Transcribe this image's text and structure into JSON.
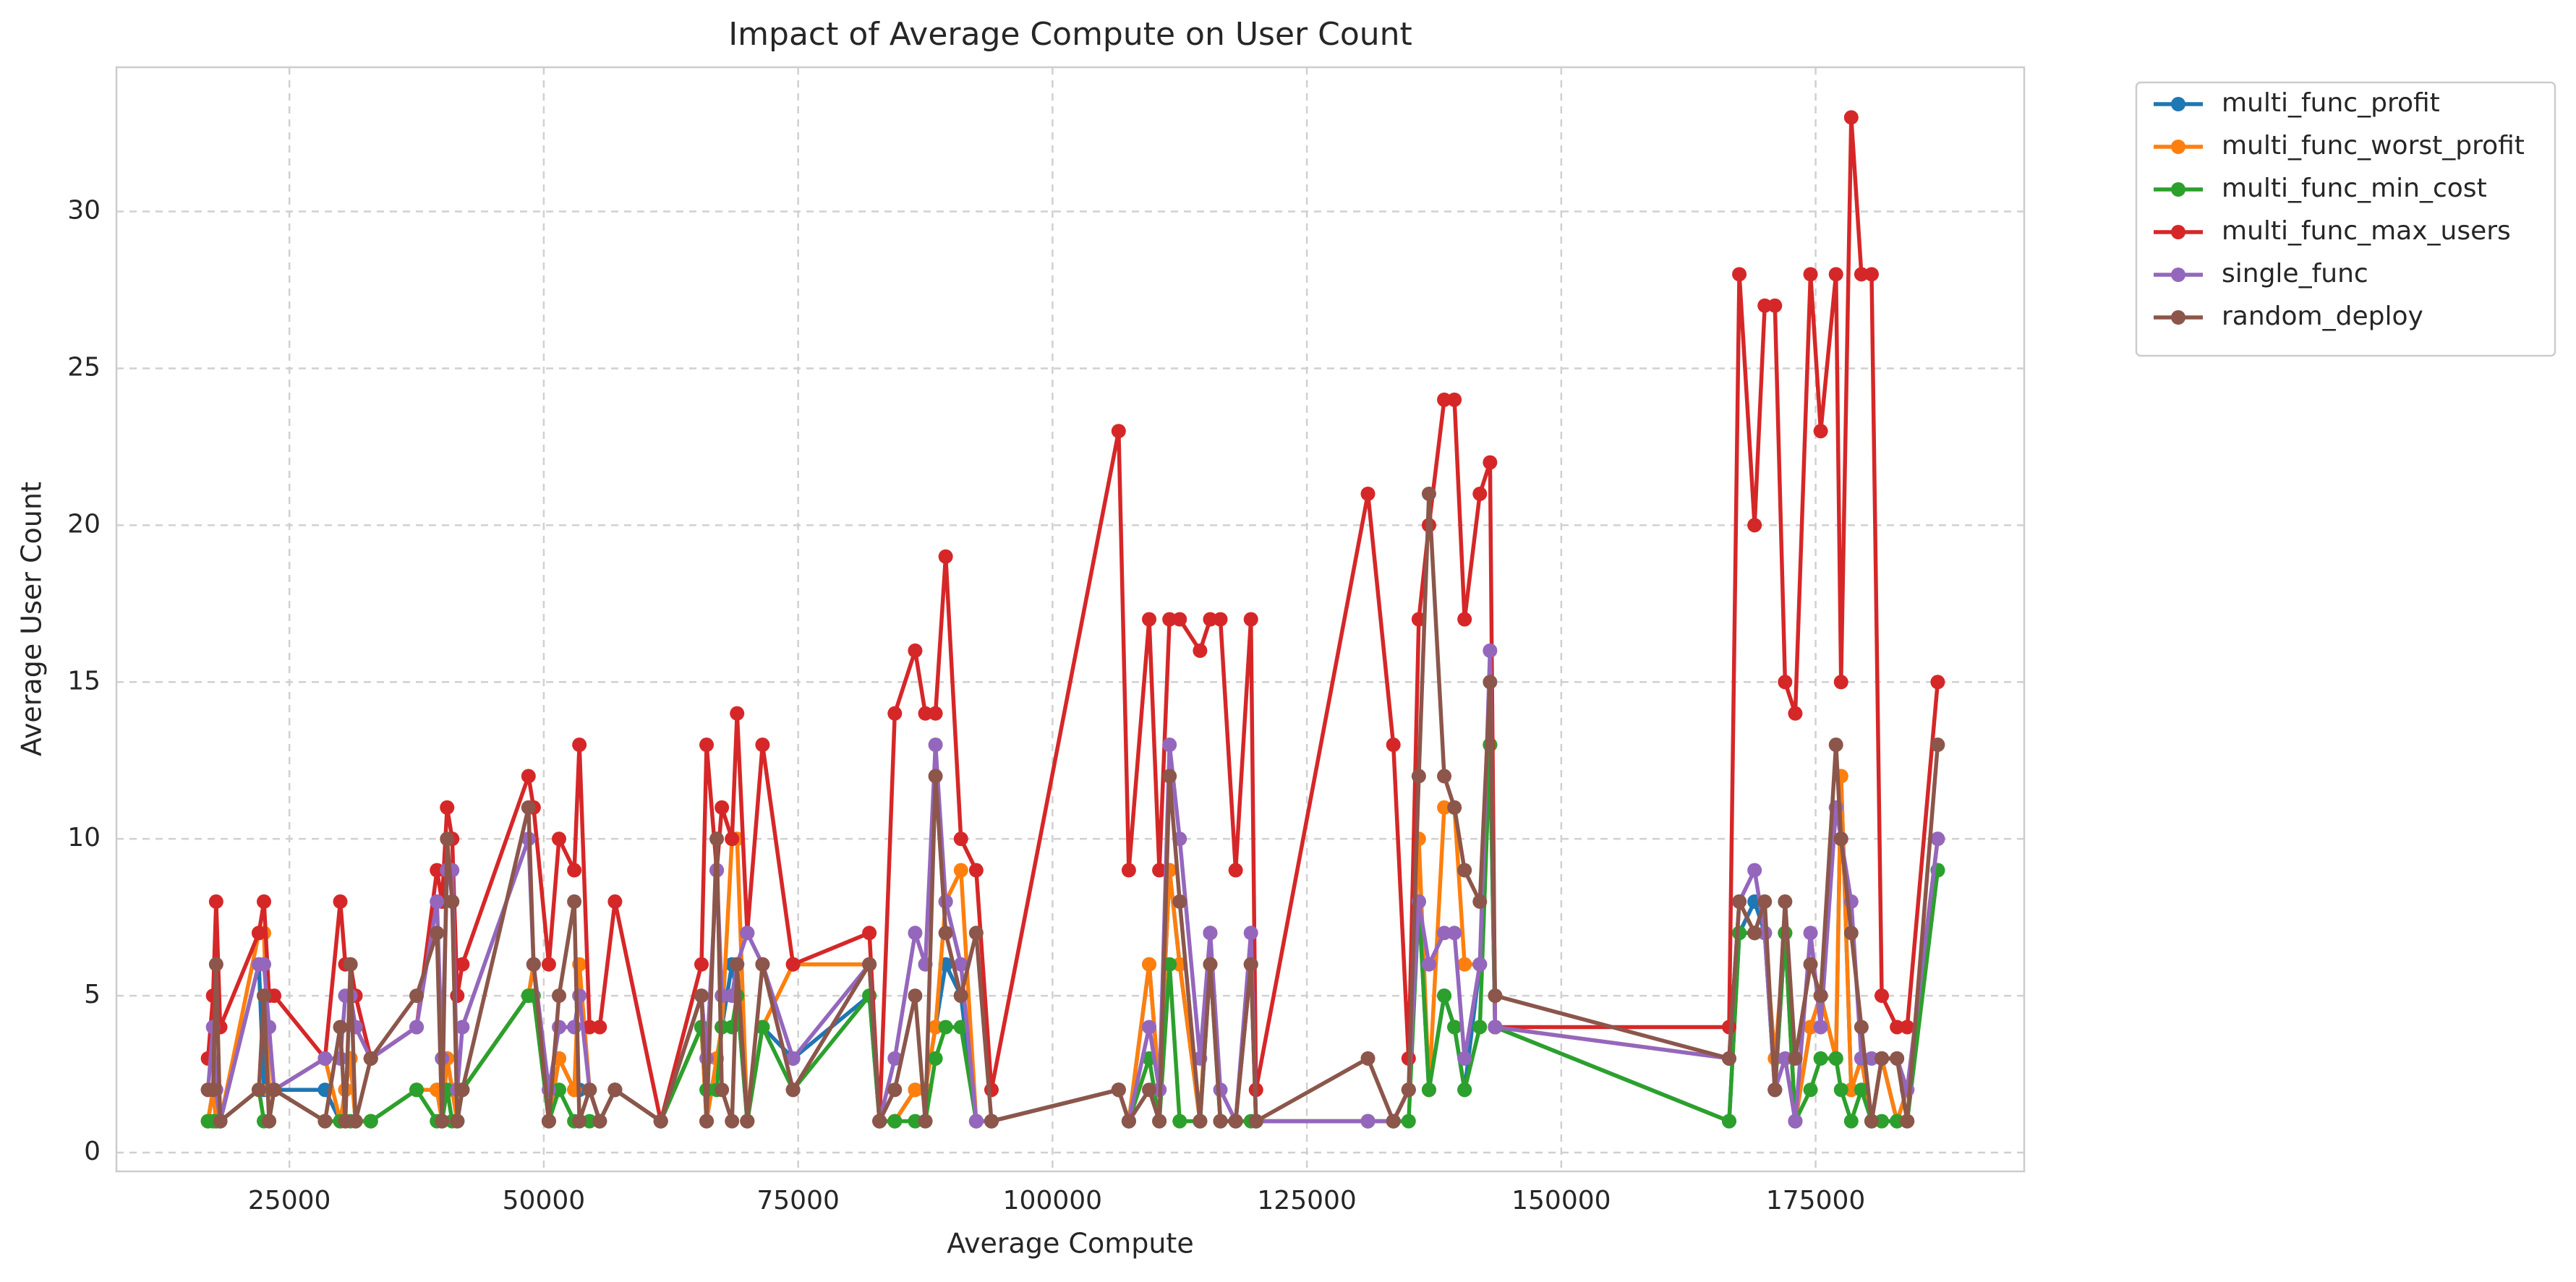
{
  "chart_data": {
    "type": "line",
    "title": "Impact of Average Compute on User Count",
    "x_label": "Average Compute",
    "y_label": "Average User Count",
    "x": [
      17000,
      17500,
      17800,
      18200,
      22000,
      22500,
      23000,
      23500,
      28500,
      30000,
      30500,
      31000,
      31500,
      33000,
      37500,
      39500,
      40000,
      40500,
      41000,
      41500,
      42000,
      48500,
      49000,
      50500,
      51500,
      53000,
      53500,
      54500,
      55500,
      57000,
      61500,
      65500,
      66000,
      67000,
      67500,
      68500,
      69000,
      70000,
      71500,
      74500,
      82000,
      83000,
      84500,
      86500,
      87500,
      88500,
      89500,
      91000,
      92500,
      94000,
      106500,
      107500,
      109500,
      110500,
      111500,
      112500,
      114500,
      115500,
      116500,
      118000,
      119500,
      120000,
      131000,
      133500,
      135000,
      136000,
      137000,
      138500,
      139500,
      140500,
      142000,
      143000,
      143500,
      166500,
      167500,
      169000,
      170000,
      171000,
      172000,
      173000,
      174500,
      175500,
      177000,
      177500,
      178500,
      179500,
      180500,
      181500,
      183000,
      184000,
      187000
    ],
    "series": [
      {
        "name": "multi_func_profit",
        "color": "#1f77b4",
        "values": [
          1,
          2,
          1,
          1,
          6,
          2,
          2,
          2,
          2,
          1,
          2,
          3,
          1,
          1,
          2,
          2,
          1,
          3,
          2,
          1,
          2,
          5,
          6,
          1,
          3,
          2,
          2,
          2,
          1,
          2,
          1,
          4,
          1,
          3,
          4,
          6,
          5,
          1,
          4,
          3,
          5,
          1,
          1,
          2,
          2,
          4,
          6,
          5,
          1,
          1,
          2,
          1,
          6,
          2,
          9,
          6,
          1,
          7,
          1,
          1,
          6,
          1,
          1,
          1,
          2,
          8,
          2,
          5,
          4,
          2,
          6,
          13,
          4,
          1,
          7,
          8,
          7,
          2,
          7,
          1,
          4,
          5,
          3,
          12,
          2,
          3,
          1,
          3,
          1,
          2,
          9
        ]
      },
      {
        "name": "multi_func_worst_profit",
        "color": "#ff7f0e",
        "values": [
          1,
          2,
          1,
          1,
          7,
          7,
          2,
          2,
          3,
          1,
          2,
          3,
          1,
          1,
          2,
          2,
          1,
          3,
          2,
          1,
          2,
          5,
          6,
          1,
          3,
          2,
          6,
          2,
          1,
          2,
          1,
          4,
          1,
          3,
          4,
          10,
          10,
          1,
          4,
          6,
          6,
          1,
          1,
          2,
          2,
          4,
          8,
          9,
          1,
          1,
          2,
          1,
          6,
          2,
          9,
          6,
          1,
          7,
          1,
          1,
          6,
          1,
          1,
          1,
          2,
          10,
          2,
          11,
          11,
          6,
          6,
          13,
          4,
          3,
          8,
          7,
          7,
          3,
          7,
          1,
          4,
          5,
          3,
          12,
          2,
          3,
          1,
          3,
          1,
          2,
          10
        ]
      },
      {
        "name": "multi_func_min_cost",
        "color": "#2ca02c",
        "values": [
          1,
          1,
          1,
          1,
          2,
          1,
          1,
          2,
          1,
          1,
          1,
          1,
          1,
          1,
          2,
          1,
          1,
          2,
          1,
          1,
          2,
          5,
          5,
          1,
          2,
          1,
          1,
          1,
          1,
          2,
          1,
          4,
          2,
          2,
          4,
          4,
          5,
          1,
          4,
          2,
          5,
          1,
          1,
          1,
          1,
          3,
          4,
          4,
          1,
          1,
          2,
          1,
          3,
          1,
          6,
          1,
          1,
          6,
          1,
          1,
          1,
          1,
          1,
          1,
          1,
          8,
          2,
          5,
          4,
          2,
          4,
          13,
          4,
          1,
          7,
          7,
          7,
          2,
          7,
          1,
          2,
          3,
          3,
          2,
          1,
          2,
          1,
          1,
          1,
          1,
          9
        ]
      },
      {
        "name": "multi_func_max_users",
        "color": "#d62728",
        "values": [
          3,
          5,
          8,
          4,
          7,
          8,
          5,
          5,
          3,
          8,
          6,
          6,
          5,
          3,
          4,
          9,
          8,
          11,
          10,
          5,
          6,
          12,
          11,
          6,
          10,
          9,
          13,
          4,
          4,
          8,
          1,
          6,
          13,
          9,
          11,
          10,
          14,
          7,
          13,
          6,
          7,
          1,
          14,
          16,
          14,
          14,
          19,
          10,
          9,
          2,
          23,
          9,
          17,
          9,
          17,
          17,
          16,
          17,
          17,
          9,
          17,
          2,
          21,
          13,
          3,
          17,
          20,
          24,
          24,
          17,
          21,
          22,
          4,
          4,
          28,
          20,
          27,
          27,
          15,
          14,
          28,
          23,
          28,
          15,
          33,
          28,
          28,
          5,
          4,
          4,
          15
        ]
      },
      {
        "name": "single_func",
        "color": "#9467bd",
        "values": [
          2,
          4,
          2,
          1,
          6,
          6,
          4,
          2,
          3,
          3,
          5,
          5,
          4,
          3,
          4,
          8,
          3,
          9,
          9,
          2,
          4,
          10,
          6,
          2,
          4,
          4,
          5,
          2,
          1,
          2,
          1,
          5,
          3,
          9,
          5,
          5,
          6,
          7,
          6,
          3,
          6,
          1,
          3,
          7,
          6,
          13,
          8,
          6,
          1,
          1,
          2,
          1,
          4,
          2,
          13,
          10,
          3,
          7,
          2,
          1,
          7,
          1,
          1,
          1,
          2,
          8,
          6,
          7,
          7,
          3,
          6,
          16,
          4,
          3,
          8,
          9,
          7,
          2,
          3,
          1,
          7,
          4,
          11,
          10,
          8,
          3,
          3,
          3,
          3,
          2,
          10
        ]
      },
      {
        "name": "random_deploy",
        "color": "#8c564b",
        "values": [
          2,
          2,
          6,
          1,
          2,
          5,
          1,
          2,
          1,
          4,
          1,
          6,
          1,
          3,
          5,
          7,
          1,
          10,
          8,
          1,
          2,
          11,
          6,
          1,
          5,
          8,
          1,
          2,
          1,
          2,
          1,
          5,
          1,
          10,
          2,
          1,
          6,
          1,
          6,
          2,
          6,
          1,
          2,
          5,
          1,
          12,
          7,
          5,
          7,
          1,
          2,
          1,
          2,
          1,
          12,
          8,
          1,
          6,
          1,
          1,
          6,
          1,
          3,
          1,
          2,
          12,
          21,
          12,
          11,
          9,
          8,
          15,
          5,
          3,
          8,
          7,
          8,
          2,
          8,
          3,
          6,
          5,
          13,
          10,
          7,
          4,
          1,
          3,
          3,
          1,
          13
        ]
      }
    ],
    "xlim": [
      8000,
      195500
    ],
    "ylim": [
      -0.6,
      34.6
    ],
    "xticks": [
      25000,
      50000,
      75000,
      100000,
      125000,
      150000,
      175000
    ],
    "yticks": [
      0,
      5,
      10,
      15,
      20,
      25,
      30
    ],
    "grid": true,
    "legend": "outside"
  }
}
